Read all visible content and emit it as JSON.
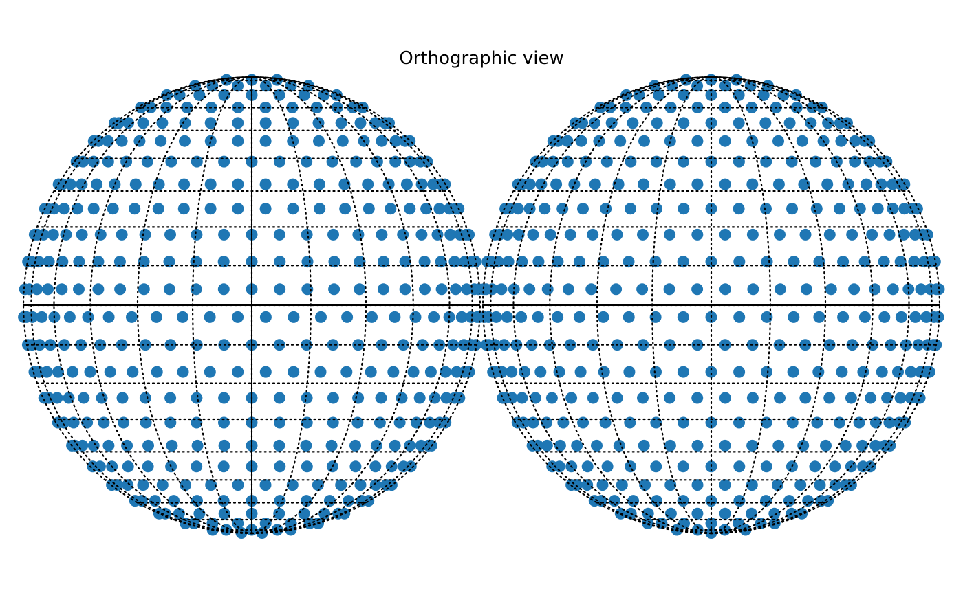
{
  "figure": {
    "title": "Orthographic view"
  },
  "colors": {
    "point": "#1f77b4",
    "graticule": "#000000",
    "axes": "#000000"
  },
  "chart_data": [
    {
      "type": "scatter",
      "projection": "orthographic",
      "hemisphere": "front",
      "view_center_lon_deg": 0,
      "view_center_lat_deg": 0,
      "point_distribution": "near-uniform spherical grid (~15° spacing)",
      "graticule": {
        "line_style": "dotted",
        "meridian_step_deg": 15,
        "parallel_step_deg": 10
      },
      "axes_lines": [
        "equator",
        "central-meridian"
      ]
    },
    {
      "type": "scatter",
      "projection": "orthographic",
      "hemisphere": "back",
      "view_center_lon_deg": 180,
      "view_center_lat_deg": 0,
      "point_distribution": "near-uniform spherical grid (~15° spacing)",
      "graticule": {
        "line_style": "dotted",
        "meridian_step_deg": 15,
        "parallel_step_deg": 10
      },
      "axes_lines": [
        "equator"
      ]
    }
  ]
}
